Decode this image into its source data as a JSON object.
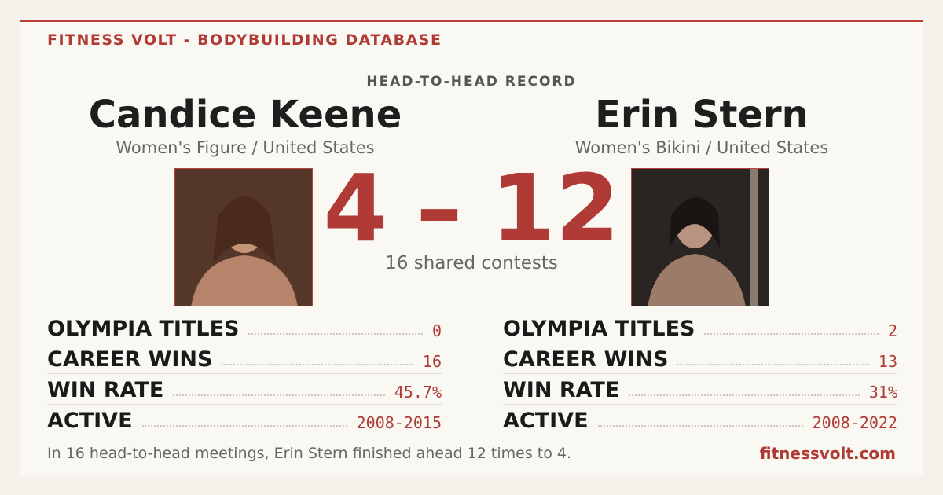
{
  "header": {
    "title": "FITNESS VOLT - BODYBUILDING DATABASE",
    "subtitle": "HEAD-TO-HEAD RECORD"
  },
  "athletes": [
    {
      "name": "Candice Keene",
      "division": "Women's Figure / United States",
      "stats": [
        {
          "label": "OLYMPIA TITLES",
          "value": "0"
        },
        {
          "label": "CAREER WINS",
          "value": "16"
        },
        {
          "label": "WIN RATE",
          "value": "45.7%"
        },
        {
          "label": "ACTIVE",
          "value": "2008-2015"
        }
      ]
    },
    {
      "name": "Erin Stern",
      "division": "Women's Bikini / United States",
      "stats": [
        {
          "label": "OLYMPIA TITLES",
          "value": "2"
        },
        {
          "label": "CAREER WINS",
          "value": "13"
        },
        {
          "label": "WIN RATE",
          "value": "31%"
        },
        {
          "label": "ACTIVE",
          "value": "2008-2022"
        }
      ]
    }
  ],
  "score": {
    "left": "4",
    "separator": "–",
    "right": "12",
    "shared": "16 shared contests"
  },
  "footer": {
    "summary": "In 16 head-to-head meetings, Erin Stern finished ahead 12 times to 4.",
    "site": "fitnessvolt.com"
  }
}
